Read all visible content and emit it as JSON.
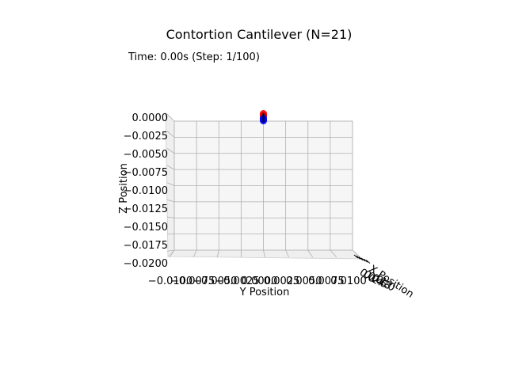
{
  "chart_data": {
    "type": "scatter",
    "title": "Contortion Cantilever (N=21)",
    "subtitle": "Time: 0.00s (Step: 1/100)",
    "xlabel": "Y Position",
    "ylabel": "Z Position",
    "depth_label": "X Position",
    "y_ticks": [
      "−0.0100",
      "−0.0075",
      "−0.0050",
      "−0.0025",
      "0.0000",
      "0.0025",
      "0.0050",
      "0.0075",
      "0.0100"
    ],
    "z_ticks": [
      "0.0000",
      "−0.0025",
      "−0.0050",
      "−0.0075",
      "−0.0100",
      "−0.0125",
      "−0.0150",
      "−0.0175",
      "−0.0200"
    ],
    "x_ticks": [
      "0.0",
      "0.2",
      "0.4",
      "0.6",
      "0.8",
      "1.0"
    ],
    "ylim": [
      -0.01,
      0.01
    ],
    "zlim": [
      -0.02,
      0
    ],
    "grid": true,
    "series": [
      {
        "color": "#ff0000",
        "points": [
          {
            "y": 0,
            "z": 0.0003
          },
          {
            "y": 0,
            "z": 0.0001
          },
          {
            "y": 0,
            "z": -0.0001
          }
        ]
      },
      {
        "color": "#0000ff",
        "points": [
          {
            "y": 0,
            "z": -0.0004
          },
          {
            "y": 0,
            "z": -0.0006
          },
          {
            "y": 0,
            "z": -0.0008
          }
        ]
      }
    ],
    "rod": {
      "color": "#000000",
      "from": {
        "y": 0,
        "z": 0.0003
      },
      "to": {
        "y": 0,
        "z": -0.0008
      }
    }
  }
}
